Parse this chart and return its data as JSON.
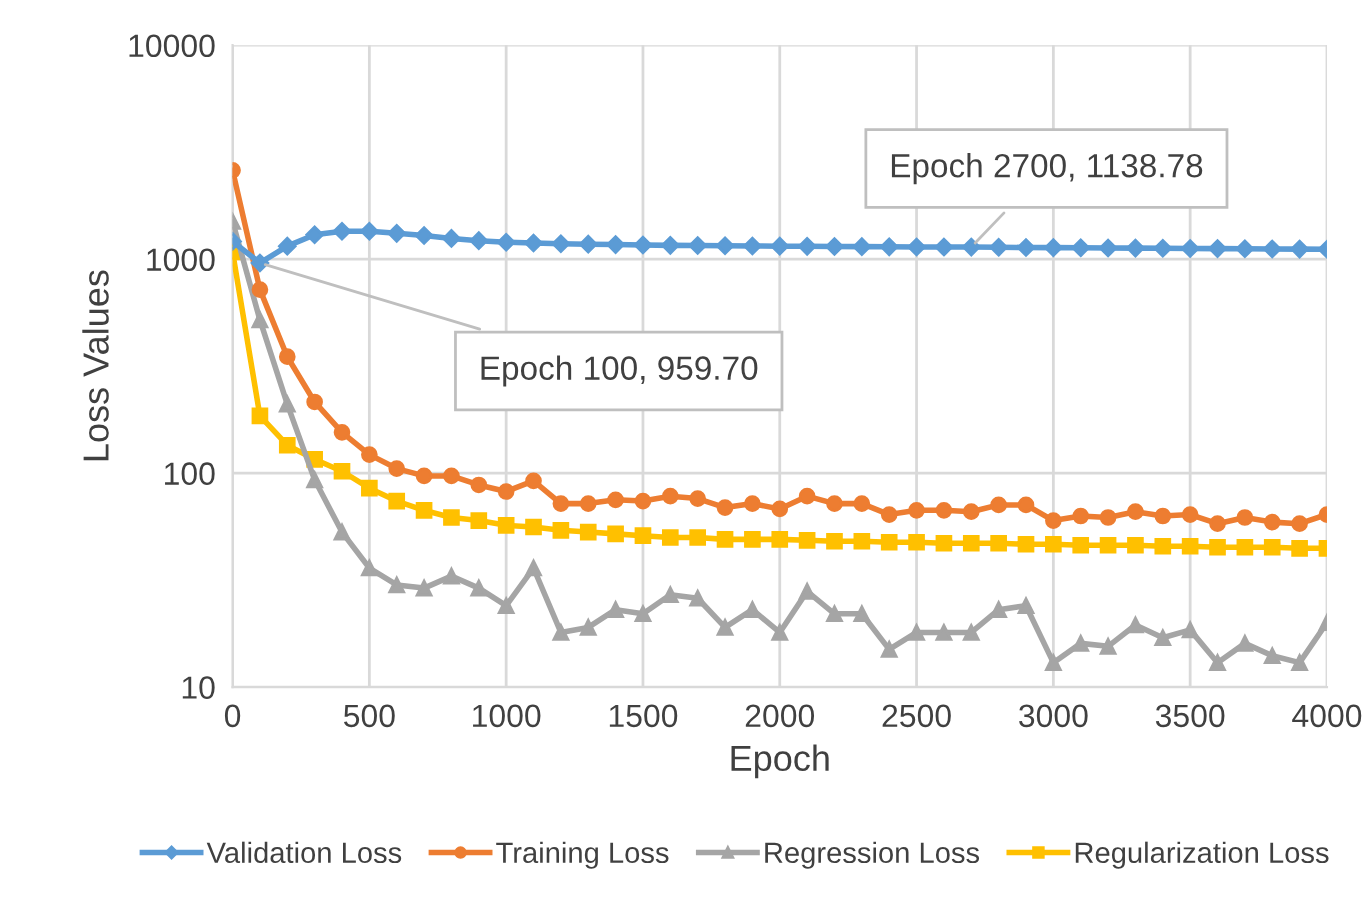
{
  "chart_data": {
    "type": "line",
    "xlabel": "Epoch",
    "ylabel": "Loss Values",
    "x": [
      0,
      100,
      200,
      300,
      400,
      500,
      600,
      700,
      800,
      900,
      1000,
      1100,
      1200,
      1300,
      1400,
      1500,
      1600,
      1700,
      1800,
      1900,
      2000,
      2100,
      2200,
      2300,
      2400,
      2500,
      2600,
      2700,
      2800,
      2900,
      3000,
      3100,
      3200,
      3300,
      3400,
      3500,
      3600,
      3700,
      3800,
      3900,
      4000
    ],
    "series": [
      {
        "name": "Validation Loss",
        "color": "#5b9bd5",
        "marker": "diamond",
        "values": [
          1210,
          959.7,
          1150,
          1300,
          1350,
          1350,
          1320,
          1290,
          1250,
          1220,
          1200,
          1190,
          1180,
          1175,
          1170,
          1165,
          1160,
          1158,
          1155,
          1152,
          1150,
          1148,
          1146,
          1144,
          1142,
          1140,
          1139,
          1138.78,
          1136,
          1134,
          1132,
          1130,
          1128,
          1126,
          1124,
          1122,
          1120,
          1118,
          1116,
          1114,
          1112
        ]
      },
      {
        "name": "Training Loss",
        "color": "#ed7d31",
        "marker": "circle",
        "values": [
          2600,
          720,
          350,
          215,
          155,
          122,
          105,
          97,
          97,
          88,
          82,
          92,
          72,
          72,
          75,
          74,
          78,
          76,
          69,
          72,
          68,
          78,
          72,
          72,
          64,
          67,
          67,
          66,
          71,
          71,
          60,
          63,
          62,
          66,
          63,
          64,
          58,
          62,
          59,
          58,
          64
        ]
      },
      {
        "name": "Regression Loss",
        "color": "#a5a5a5",
        "marker": "triangle",
        "values": [
          1500,
          520,
          210,
          93,
          53,
          36,
          30,
          29,
          33,
          29,
          24,
          36,
          18,
          19,
          23,
          22,
          27,
          26,
          19,
          23,
          18,
          28,
          22,
          22,
          15,
          18,
          18,
          18,
          23,
          24,
          13,
          16,
          15.5,
          19.5,
          17,
          18.5,
          13,
          16,
          14,
          13,
          20
        ]
      },
      {
        "name": "Regularization Loss",
        "color": "#ffc000",
        "marker": "square",
        "values": [
          1080,
          185,
          135,
          116,
          102,
          85,
          74,
          67,
          62,
          60,
          57,
          56,
          54,
          53,
          52,
          51,
          50,
          50,
          49,
          49,
          49,
          48.5,
          48,
          48,
          47.5,
          47.5,
          47,
          47,
          47,
          46.5,
          46.5,
          46,
          46,
          46,
          45.5,
          45.5,
          45,
          45,
          45,
          44.5,
          44.5
        ]
      }
    ],
    "annotations": [
      {
        "text": "Epoch 100, 959.70",
        "x": 100,
        "y": 959.7
      },
      {
        "text": "Epoch 2700, 1138.78",
        "x": 2700,
        "y": 1138.78
      }
    ],
    "log": true,
    "xlim": [
      0,
      4000
    ],
    "xticks": [
      0,
      500,
      1000,
      1500,
      2000,
      2500,
      3000,
      3500,
      4000
    ],
    "ylim": [
      10,
      10000
    ],
    "yticks": [
      10,
      100,
      1000,
      10000
    ],
    "grid": true,
    "legend": "bottom",
    "line_style": "solid"
  }
}
